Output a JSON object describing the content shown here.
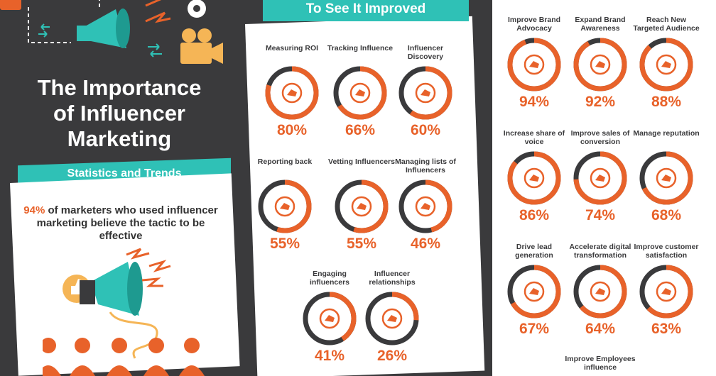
{
  "hero": {
    "title_lines": [
      "The Importance",
      "of Influencer",
      "Marketing"
    ],
    "subtitle": "Statistics and Trends",
    "stat_pct": "94%",
    "stat_text": " of marketers who used influencer marketing believe the tactic to be effective"
  },
  "middle": {
    "banner": "To See It Improved",
    "metrics": [
      {
        "label": "Measuring ROI",
        "value": "80%",
        "pct": 80,
        "icon": "roi-chart-icon"
      },
      {
        "label": "Tracking Influence",
        "value": "66%",
        "pct": 66,
        "icon": "tracking-network-icon"
      },
      {
        "label": "Influencer Discovery",
        "value": "60%",
        "pct": 60,
        "icon": "megaphone-icon"
      },
      {
        "label": "Reporting back",
        "value": "55%",
        "pct": 55,
        "icon": "clipboard-icon"
      },
      {
        "label": "Vetting Influencers",
        "value": "55%",
        "pct": 55,
        "icon": "megaphone-search-icon"
      },
      {
        "label": "Managing lists of Influencers",
        "value": "46%",
        "pct": 46,
        "icon": "list-gear-icon"
      },
      {
        "label": "Engaging influencers",
        "value": "41%",
        "pct": 41,
        "icon": "megaphone-icon"
      },
      {
        "label": "Influencer relationships",
        "value": "26%",
        "pct": 26,
        "icon": "handshake-icon"
      }
    ]
  },
  "right": {
    "metrics": [
      {
        "label": "Improve Brand Advocacy",
        "value": "94%",
        "pct": 94,
        "icon": "megaphone-star-icon"
      },
      {
        "label": "Expand Brand Awareness",
        "value": "92%",
        "pct": 92,
        "icon": "person-star-icon"
      },
      {
        "label": "Reach New Targeted Audience",
        "value": "88%",
        "pct": 88,
        "icon": "audience-icon"
      },
      {
        "label": "Increase share of voice",
        "value": "86%",
        "pct": 86,
        "icon": "megaphone-icon"
      },
      {
        "label": "Improve sales of conversion",
        "value": "74%",
        "pct": 74,
        "icon": "funnel-dollar-icon"
      },
      {
        "label": "Manage reputation",
        "value": "68%",
        "pct": 68,
        "icon": "badge-icon"
      },
      {
        "label": "Drive lead generation",
        "value": "67%",
        "pct": 67,
        "icon": "people-arrow-icon"
      },
      {
        "label": "Accelerate digital transformation",
        "value": "64%",
        "pct": 64,
        "icon": "forward-arrow-icon"
      },
      {
        "label": "Improve customer satisfaction",
        "value": "63%",
        "pct": 63,
        "icon": "thumbs-up-icon"
      }
    ],
    "footer_label": "Improve Employees influence"
  },
  "colors": {
    "orange": "#e8622a",
    "teal": "#2fc1b6",
    "dark": "#3a3a3c",
    "ring_track": "#3a3a3c"
  }
}
